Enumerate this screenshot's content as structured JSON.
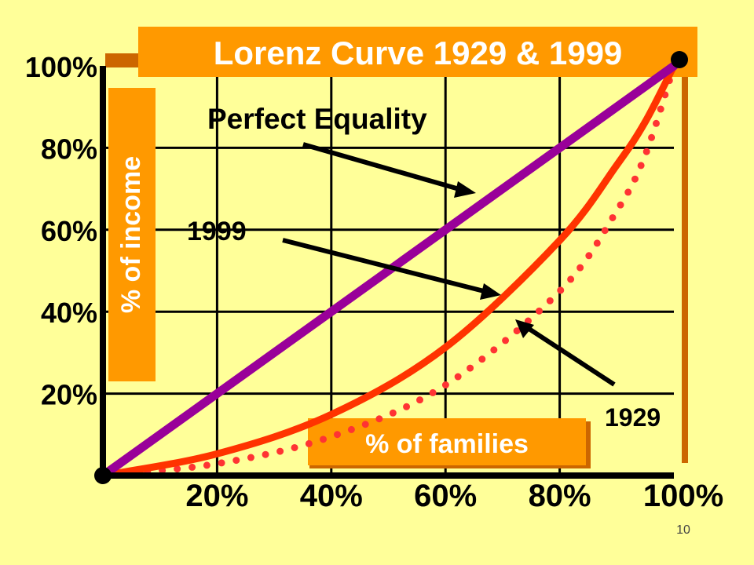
{
  "chart_data": {
    "type": "line",
    "title": "Lorenz Curve 1929 & 1999",
    "xlabel": "% of families",
    "ylabel": "% of income",
    "xlim": [
      0,
      100
    ],
    "ylim": [
      0,
      100
    ],
    "x_ticks": [
      "20%",
      "40%",
      "60%",
      "80%",
      "100%"
    ],
    "y_ticks": [
      "20%",
      "40%",
      "60%",
      "80%",
      "100%"
    ],
    "grid": true,
    "series": [
      {
        "name": "Perfect Equality",
        "style": "solid",
        "color": "#990099",
        "x": [
          0,
          100
        ],
        "y": [
          0,
          100
        ]
      },
      {
        "name": "1999",
        "style": "solid",
        "color": "#ff3300",
        "x": [
          0,
          20,
          40,
          60,
          80,
          90,
          95,
          100
        ],
        "y": [
          0,
          5.3,
          14.9,
          31.3,
          57.4,
          75.8,
          86.4,
          100
        ]
      },
      {
        "name": "1929",
        "style": "dotted",
        "color": "#ff3333",
        "x": [
          0,
          20,
          40,
          60,
          80,
          90,
          95,
          100
        ],
        "y": [
          0,
          2.9,
          9.5,
          22.1,
          45.0,
          64.6,
          78.3,
          100
        ]
      }
    ],
    "annotations": [
      "Perfect Equality",
      "1999",
      "1929"
    ],
    "legend": "none"
  },
  "slide_number": "10",
  "colors": {
    "background": "#ffff99",
    "accent": "#ff9900",
    "axis": "#000000"
  }
}
